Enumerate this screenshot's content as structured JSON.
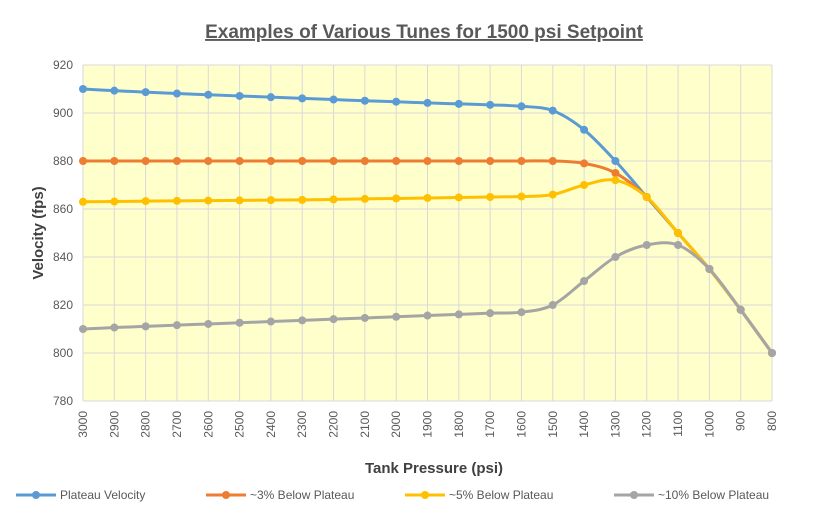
{
  "chart_data": {
    "type": "line",
    "title": "Examples of Various Tunes for 1500 psi Setpoint",
    "xlabel": "Tank Pressure (psi)",
    "ylabel": "Velocity (fps)",
    "categories": [
      "3000",
      "2900",
      "2800",
      "2700",
      "2600",
      "2500",
      "2400",
      "2300",
      "2200",
      "2100",
      "2000",
      "1900",
      "1800",
      "1700",
      "1600",
      "1500",
      "1400",
      "1300",
      "1200",
      "1100",
      "1000",
      "900",
      "800"
    ],
    "ylim": [
      780,
      920
    ],
    "yticks": [
      "920",
      "900",
      "880",
      "860",
      "840",
      "820",
      "800",
      "780"
    ],
    "grid": true,
    "legend_position": "bottom",
    "plot_background": "#FFFFCC",
    "series": [
      {
        "name": "Plateau Velocity",
        "color": "#5B9BD5",
        "values": [
          910,
          909.3,
          908.7,
          908.1,
          907.6,
          907.1,
          906.6,
          906.1,
          905.6,
          905.1,
          904.7,
          904.2,
          903.8,
          903.4,
          902.8,
          901,
          893,
          880,
          865,
          850,
          835,
          818,
          800
        ]
      },
      {
        "name": "~3% Below Plateau",
        "color": "#ED7D31",
        "values": [
          880,
          880,
          880,
          880,
          880,
          880,
          880,
          880,
          880,
          880,
          880,
          880,
          880,
          880,
          880,
          880,
          879,
          875,
          865,
          850,
          835,
          818,
          800
        ]
      },
      {
        "name": "~5% Below Plateau",
        "color": "#FFC000",
        "values": [
          863,
          863.1,
          863.3,
          863.4,
          863.5,
          863.6,
          863.7,
          863.8,
          864,
          864.2,
          864.4,
          864.6,
          864.8,
          865,
          865.2,
          866,
          870,
          872,
          865,
          850,
          835,
          818,
          800
        ]
      },
      {
        "name": "~10% Below Plateau",
        "color": "#A5A5A5",
        "values": [
          810,
          810.6,
          811.1,
          811.6,
          812.1,
          812.6,
          813.1,
          813.6,
          814.1,
          814.6,
          815.1,
          815.6,
          816.1,
          816.6,
          817,
          820,
          830,
          840,
          845,
          845,
          835,
          818,
          800
        ]
      }
    ]
  }
}
